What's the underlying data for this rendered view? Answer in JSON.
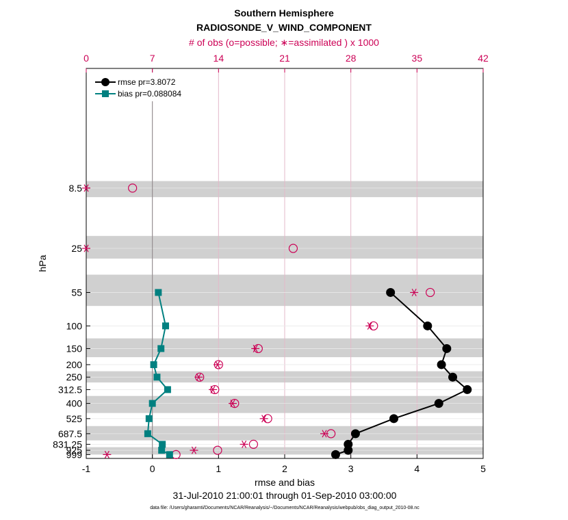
{
  "chart_data": {
    "type": "line",
    "title": "Southern Hemisphere",
    "subtitle": "RADIOSONDE_V_WIND_COMPONENT",
    "top_axis_label": "# of obs (o=possible; ∗=assimilated ) x 1000",
    "xlabel": "rmse and bias",
    "ylabel": "hPa",
    "date_range": "31-Jul-2010 21:00:01 through 01-Sep-2010 03:00:00",
    "footnote": "data file: /Users/gharamti/Documents/NCAR/Reanalysis/~/Documents/NCAR/Reanalysis/webpub/obs_diag_output_2010-08.nc",
    "xlim": [
      -1,
      5
    ],
    "x_ticks": [
      "-1",
      "0",
      "1",
      "2",
      "3",
      "4",
      "5"
    ],
    "top_xlim": [
      0,
      42
    ],
    "top_ticks": [
      "0",
      "7",
      "14",
      "21",
      "28",
      "35",
      "42"
    ],
    "y_scale": "log",
    "ylim": [
      1070,
      1
    ],
    "levels": [
      8.5,
      25,
      55,
      100,
      150,
      200,
      250,
      312.5,
      400,
      525,
      687.5,
      831.25,
      925,
      999
    ],
    "level_labels": [
      "8.5",
      "25",
      "55",
      "100",
      "150",
      "200",
      "250",
      "312.5",
      "400",
      "525",
      "687.5",
      "831.25",
      "925",
      "999"
    ],
    "shaded_layers": [
      [
        10,
        7.5
      ],
      [
        30,
        20
      ],
      [
        70,
        40
      ],
      [
        175,
        125
      ],
      [
        275,
        225
      ],
      [
        475,
        350
      ],
      [
        775,
        600
      ],
      [
        1000,
        875
      ]
    ],
    "legend": {
      "position": "top-left",
      "entries": [
        "rmse pr=3.8072",
        "bias pr=0.088084"
      ]
    },
    "series": [
      {
        "name": "rmse pr=3.8072",
        "color": "#000000",
        "levels": [
          55,
          100,
          150,
          200,
          250,
          312.5,
          400,
          525,
          687.5,
          831.25,
          925,
          999
        ],
        "values": [
          3.6,
          4.16,
          4.45,
          4.37,
          4.54,
          4.76,
          4.33,
          3.65,
          3.07,
          2.96,
          2.96,
          2.77
        ]
      },
      {
        "name": "bias pr=0.088084",
        "color": "#008080",
        "levels": [
          55,
          100,
          150,
          200,
          250,
          312.5,
          400,
          525,
          687.5,
          831.25,
          925,
          999
        ],
        "values": [
          0.09,
          0.2,
          0.13,
          0.02,
          0.07,
          0.23,
          0.0,
          -0.05,
          -0.07,
          0.15,
          0.14,
          0.26
        ]
      },
      {
        "name": "possible",
        "color": "#cc0055",
        "marker": "circle",
        "levels": [
          8.5,
          25,
          55,
          100,
          150,
          200,
          250,
          312.5,
          400,
          525,
          687.5,
          831.25,
          925,
          999
        ],
        "values": [
          4.9,
          21.9,
          36.4,
          30.4,
          18.2,
          14.0,
          12.0,
          13.6,
          15.7,
          19.2,
          25.9,
          17.7,
          13.9,
          9.5
        ]
      },
      {
        "name": "assimilated",
        "color": "#cc0055",
        "marker": "asterisk",
        "levels": [
          8.5,
          25,
          55,
          100,
          150,
          200,
          250,
          312.5,
          400,
          525,
          687.5,
          831.25,
          925,
          999
        ],
        "values": [
          0.0,
          0.0,
          34.7,
          30.0,
          17.9,
          13.9,
          11.9,
          13.4,
          15.5,
          18.8,
          25.2,
          16.7,
          11.4,
          2.2
        ]
      }
    ],
    "colors": {
      "rmse": "#000000",
      "bias": "#008080",
      "obs": "#cc0055",
      "shade": "#d0d0d0",
      "grid": "#e3b9c9"
    }
  }
}
